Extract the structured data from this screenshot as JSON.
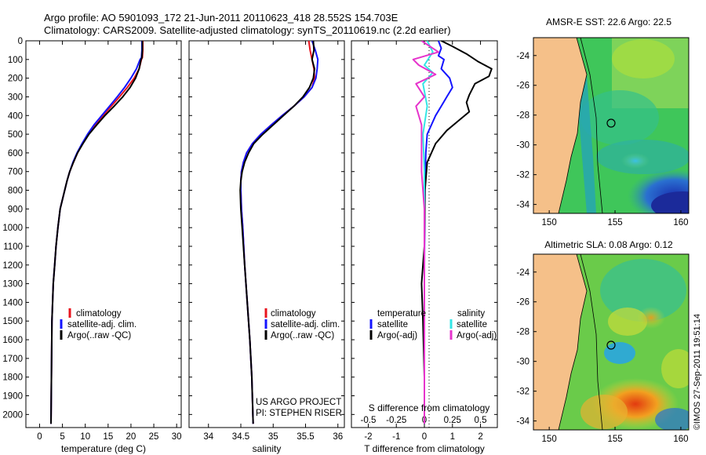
{
  "header": {
    "line1": "Argo profile: AO 5901093_172 21-Jun-2011 20110623_418 28.552S 154.703E",
    "line2": "Climatology: CARS2009. Satellite-adjusted climatology: synTS_20110619.nc (2.2d earlier)"
  },
  "colors": {
    "climatology": "#e8141e",
    "satellite": "#1414ff",
    "argo": "#000000",
    "satellite_S": "#33e6e6",
    "argo_S": "#e633cc",
    "land": "#f5c089"
  },
  "chart_data": [
    {
      "type": "line",
      "id": "temperature",
      "xlabel": "temperature (deg C)",
      "xlim": [
        -3,
        31
      ],
      "ylim": [
        0,
        2070
      ],
      "x_ticks": [
        0,
        5,
        10,
        15,
        20,
        25,
        30
      ],
      "y_ticks": [
        0,
        100,
        200,
        300,
        400,
        500,
        600,
        700,
        800,
        900,
        1000,
        1100,
        1200,
        1300,
        1400,
        1500,
        1600,
        1700,
        1800,
        1900,
        2000
      ],
      "legend": [
        "climatology",
        "satellite-adj. clim.",
        "Argo(..raw -QC)"
      ],
      "series": [
        {
          "name": "climatology",
          "color_key": "climatology",
          "x": [
            22.6,
            22.6,
            22.5,
            22.3,
            21.8,
            20.7,
            19.2,
            17.5,
            15.7,
            13.9,
            12.1,
            10.6,
            9.4,
            8.3,
            7.4,
            6.6,
            6.0,
            5.5,
            5.0,
            4.5,
            4.0,
            3.6,
            3.3,
            3.0,
            2.7,
            2.5
          ],
          "depth": [
            0,
            50,
            90,
            100,
            150,
            200,
            250,
            300,
            350,
            400,
            450,
            500,
            550,
            600,
            650,
            700,
            750,
            800,
            850,
            900,
            1000,
            1100,
            1200,
            1300,
            1500,
            2050
          ]
        },
        {
          "name": "satellite-adj. clim.",
          "color_key": "satellite",
          "x": [
            22.4,
            22.4,
            22.3,
            22.0,
            21.2,
            20.0,
            18.6,
            17.0,
            15.3,
            13.6,
            11.9,
            10.5,
            9.3,
            8.2,
            7.3,
            6.6,
            6.0,
            5.5,
            5.0,
            4.5,
            4.0,
            3.6,
            3.3,
            3.0,
            2.7,
            2.5
          ],
          "depth": [
            0,
            50,
            90,
            100,
            150,
            200,
            250,
            300,
            350,
            400,
            450,
            500,
            550,
            600,
            650,
            700,
            750,
            800,
            850,
            900,
            1000,
            1100,
            1200,
            1300,
            1500,
            2050
          ]
        },
        {
          "name": "Argo(..raw -QC)",
          "color_key": "argo",
          "x": [
            22.5,
            22.5,
            22.4,
            22.2,
            21.8,
            21.0,
            19.8,
            18.2,
            16.3,
            14.3,
            12.5,
            10.8,
            9.5,
            8.3,
            7.4,
            6.6,
            6.0,
            5.5,
            5.0,
            4.5,
            4.0,
            3.6,
            3.3,
            3.0,
            2.7,
            2.5
          ],
          "depth": [
            0,
            50,
            90,
            100,
            150,
            200,
            250,
            300,
            350,
            400,
            450,
            500,
            550,
            600,
            650,
            700,
            750,
            800,
            850,
            900,
            1000,
            1100,
            1200,
            1300,
            1500,
            2050
          ]
        }
      ]
    },
    {
      "type": "line",
      "id": "salinity",
      "xlabel": "salinity",
      "xlim": [
        33.7,
        36.1
      ],
      "ylim": [
        0,
        2070
      ],
      "x_ticks": [
        34,
        34.5,
        35,
        35.5,
        36
      ],
      "x_tick_labels": [
        "34",
        "34.5",
        "35",
        "35.5",
        "36"
      ],
      "legend": [
        "climatology",
        "satellite-adj. clim.",
        "Argo(..raw -QC)"
      ],
      "annotation": [
        "US ARGO PROJECT",
        "PI: STEPHEN RISER"
      ],
      "series": [
        {
          "name": "climatology",
          "color_key": "climatology",
          "x": [
            35.55,
            35.57,
            35.6,
            35.63,
            35.64,
            35.6,
            35.48,
            35.32,
            35.14,
            34.97,
            34.81,
            34.68,
            34.59,
            34.54,
            34.51,
            34.5,
            34.5,
            34.51,
            34.53,
            34.56,
            34.6,
            34.64,
            34.67,
            34.69
          ],
          "depth": [
            0,
            50,
            100,
            150,
            200,
            250,
            300,
            350,
            400,
            450,
            500,
            550,
            600,
            650,
            700,
            750,
            800,
            900,
            1000,
            1200,
            1400,
            1600,
            1800,
            2050
          ]
        },
        {
          "name": "satellite-adj. clim.",
          "color_key": "satellite",
          "x": [
            35.6,
            35.65,
            35.69,
            35.68,
            35.66,
            35.6,
            35.48,
            35.32,
            35.14,
            34.97,
            34.81,
            34.68,
            34.59,
            34.54,
            34.51,
            34.5,
            34.5,
            34.51,
            34.53,
            34.56,
            34.6,
            34.64,
            34.67,
            34.69
          ],
          "depth": [
            0,
            50,
            100,
            150,
            200,
            250,
            300,
            350,
            400,
            450,
            500,
            550,
            600,
            650,
            700,
            750,
            800,
            900,
            1000,
            1200,
            1400,
            1600,
            1800,
            2050
          ]
        },
        {
          "name": "Argo(..raw -QC)",
          "color_key": "argo",
          "x": [
            35.62,
            35.63,
            35.6,
            35.64,
            35.62,
            35.56,
            35.46,
            35.32,
            35.16,
            35.0,
            34.84,
            34.7,
            34.62,
            34.56,
            34.52,
            34.5,
            34.49,
            34.5,
            34.52,
            34.56,
            34.6,
            34.64,
            34.67,
            34.69
          ],
          "depth": [
            0,
            50,
            100,
            150,
            200,
            250,
            300,
            350,
            400,
            450,
            500,
            550,
            600,
            650,
            700,
            750,
            800,
            900,
            1000,
            1200,
            1400,
            1600,
            1800,
            2050
          ]
        }
      ]
    },
    {
      "type": "line",
      "id": "difference",
      "xlabel": "T difference from climatology",
      "x2label": "S difference from climatology",
      "xlim": [
        -2.6,
        2.6
      ],
      "ylim": [
        0,
        2070
      ],
      "x_ticks": [
        -2,
        -1,
        0,
        1,
        2
      ],
      "x2_ticks": [
        -0.5,
        -0.25,
        0,
        0.25,
        0.5
      ],
      "legend_left_title": "temperature",
      "legend_right_title": "salinity",
      "legend": [
        "satellite",
        "Argo(-adj)",
        "satellite",
        "Argo(-adj)"
      ],
      "series": [
        {
          "name": "temperature satellite",
          "color_key": "satellite",
          "x": [
            0.5,
            0.6,
            0.5,
            0.7,
            0.6,
            0.9,
            1.0,
            0.8,
            0.6,
            0.4,
            0.1,
            0.05,
            0.02,
            0.0,
            0.0
          ],
          "depth": [
            0,
            40,
            80,
            100,
            150,
            200,
            250,
            300,
            350,
            400,
            500,
            600,
            800,
            1200,
            2050
          ]
        },
        {
          "name": "temperature Argo(-adj)",
          "color_key": "argo",
          "x": [
            0.6,
            1.0,
            1.5,
            1.9,
            2.4,
            2.3,
            1.8,
            1.6,
            1.5,
            1.6,
            1.2,
            0.8,
            0.4,
            0.1,
            0.02,
            0.0,
            -0.1,
            -0.05,
            0.0,
            0.0
          ],
          "depth": [
            0,
            30,
            70,
            110,
            150,
            190,
            230,
            290,
            330,
            380,
            430,
            480,
            550,
            650,
            800,
            1100,
            1300,
            1500,
            1800,
            2050
          ]
        },
        {
          "name": "salinity satellite",
          "color_key": "satellite_S",
          "x": [
            0.1,
            0.3,
            0.0,
            0.3,
            -0.05,
            0.1,
            -0.05,
            0.0,
            0.0,
            0.0
          ],
          "depth": [
            0,
            60,
            130,
            170,
            230,
            350,
            500,
            700,
            1500,
            2050
          ]
        },
        {
          "name": "salinity Argo(-adj)",
          "color_key": "argo_S",
          "x": [
            -0.1,
            0.5,
            -0.4,
            -0.2,
            0.4,
            -0.3,
            0.0,
            -0.3,
            -0.1,
            -0.1,
            0.0,
            0.0
          ],
          "depth": [
            0,
            60,
            100,
            130,
            180,
            230,
            300,
            350,
            450,
            700,
            900,
            2050
          ]
        }
      ]
    }
  ],
  "maps": [
    {
      "title": "AMSR-E SST: 22.6 Argo: 22.5",
      "y_ticks": [
        -24,
        -26,
        -28,
        -30,
        -32,
        -34
      ],
      "x_ticks": [
        150,
        155,
        160
      ],
      "xlim": [
        148.8,
        160.6
      ],
      "ylim": [
        -34.6,
        -22.8
      ]
    },
    {
      "title": "Altimetric SLA: 0.08 Argo: 0.12",
      "y_ticks": [
        -24,
        -26,
        -28,
        -30,
        -32,
        -34
      ],
      "x_ticks": [
        150,
        155,
        160
      ],
      "xlim": [
        148.8,
        160.6
      ],
      "ylim": [
        -34.6,
        -22.8
      ]
    }
  ],
  "footer": {
    "stamp": "©IMOS 27-Sep-2011 19:51:14"
  }
}
